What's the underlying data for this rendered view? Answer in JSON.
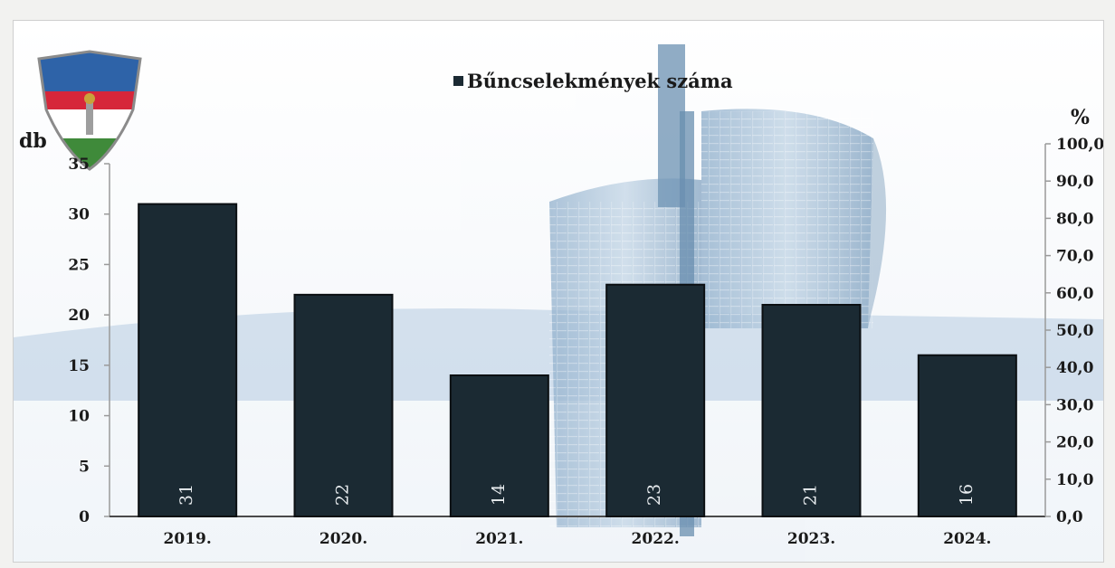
{
  "chart_data": {
    "type": "bar",
    "categories": [
      "2019.",
      "2020.",
      "2021.",
      "2022.",
      "2023.",
      "2024."
    ],
    "series": [
      {
        "name": "Bűncselekmények száma",
        "values": [
          31,
          22,
          14,
          23,
          21,
          16
        ]
      }
    ],
    "y_left": {
      "label": "db",
      "min": 0,
      "max": 35,
      "step": 5
    },
    "y_right": {
      "label": "%",
      "min": 0,
      "max": 100,
      "step": 10,
      "ticks": [
        "0,0",
        "10,0",
        "20,0",
        "30,0",
        "40,0",
        "50,0",
        "60,0",
        "70,0",
        "80,0",
        "90,0",
        "100,0"
      ]
    },
    "legend_position": "top",
    "grid": false,
    "colors": {
      "bar": "#1b2a33",
      "bar_edge": "#0b0f12",
      "label": "#e8ecef"
    }
  },
  "icons": {
    "logo": "police-badge-icon",
    "background": "building-photo"
  }
}
